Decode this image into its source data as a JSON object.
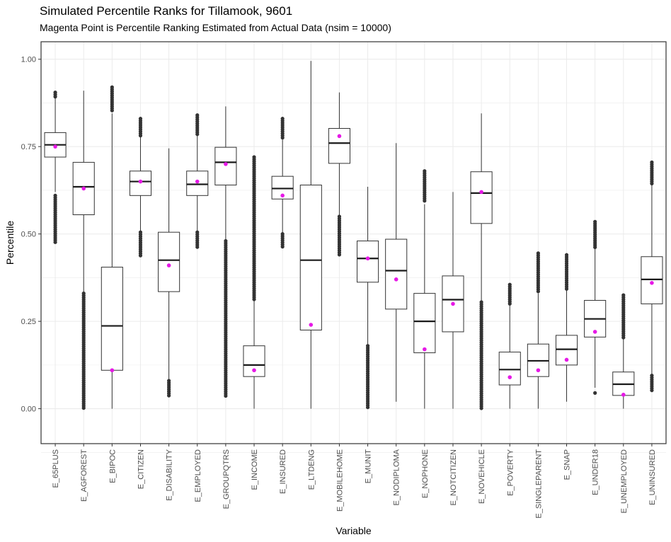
{
  "chart_data": {
    "type": "boxplot",
    "title": "Simulated Percentile Ranks for Tillamook, 9601",
    "subtitle": "Magenta Point is Percentile Ranking Estimated from Actual Data (nsim = 10000)",
    "xlabel": "Variable",
    "ylabel": "Percentile",
    "ylim": [
      -0.1,
      1.05
    ],
    "yticks": [
      "0.00",
      "0.25",
      "0.50",
      "0.75",
      "1.00"
    ],
    "grid": true,
    "colors": {
      "box": "#333333",
      "median": "#1a1a1a",
      "outlier": "#333333",
      "actual": "#e619e6",
      "grid": "#ebebeb",
      "panel_border": "#333333"
    },
    "categories": [
      "E_65PLUS",
      "E_AGFOREST",
      "E_BIPOC",
      "E_CITIZEN",
      "E_DISABILITY",
      "E_EMPLOYED",
      "E_GROUPQTRS",
      "E_INCOME",
      "E_INSURED",
      "E_LTDENG",
      "E_MOBILEHOME",
      "E_MUNIT",
      "E_NODIPLOMA",
      "E_NOPHONE",
      "E_NOTCITIZEN",
      "E_NOVEHICLE",
      "E_POVERTY",
      "E_SINGLEPARENT",
      "E_SNAP",
      "E_UNDER18",
      "E_UNEMPLOYED",
      "E_UNINSURED"
    ],
    "boxes": [
      {
        "lower_whisker": 0.62,
        "q1": 0.72,
        "median": 0.755,
        "q3": 0.79,
        "upper_whisker": 0.89,
        "outliers_low": [
          0.475,
          0.61
        ],
        "outliers_high": [
          0.89,
          0.905
        ],
        "actual": 0.75
      },
      {
        "lower_whisker": 0.33,
        "q1": 0.555,
        "median": 0.635,
        "q3": 0.705,
        "upper_whisker": 0.91,
        "outliers_low": [
          0.0,
          0.33
        ],
        "outliers_high": [],
        "actual": 0.63
      },
      {
        "lower_whisker": 0.0,
        "q1": 0.11,
        "median": 0.237,
        "q3": 0.405,
        "upper_whisker": 0.845,
        "outliers_low": [],
        "outliers_high": [
          0.85,
          0.92
        ],
        "actual": 0.11
      },
      {
        "lower_whisker": 0.505,
        "q1": 0.61,
        "median": 0.65,
        "q3": 0.68,
        "upper_whisker": 0.78,
        "outliers_low": [
          0.435,
          0.505
        ],
        "outliers_high": [
          0.78,
          0.83
        ],
        "actual": 0.65
      },
      {
        "lower_whisker": 0.08,
        "q1": 0.335,
        "median": 0.425,
        "q3": 0.505,
        "upper_whisker": 0.745,
        "outliers_low": [
          0.035,
          0.08
        ],
        "outliers_high": [],
        "actual": 0.41
      },
      {
        "lower_whisker": 0.505,
        "q1": 0.61,
        "median": 0.642,
        "q3": 0.68,
        "upper_whisker": 0.785,
        "outliers_low": [
          0.46,
          0.505
        ],
        "outliers_high": [
          0.785,
          0.84
        ],
        "actual": 0.65
      },
      {
        "lower_whisker": 0.48,
        "q1": 0.64,
        "median": 0.705,
        "q3": 0.748,
        "upper_whisker": 0.865,
        "outliers_low": [
          0.035,
          0.48
        ],
        "outliers_high": [],
        "actual": 0.7
      },
      {
        "lower_whisker": 0.0,
        "q1": 0.092,
        "median": 0.125,
        "q3": 0.18,
        "upper_whisker": 0.31,
        "outliers_low": [],
        "outliers_high": [
          0.31,
          0.72
        ],
        "actual": 0.11
      },
      {
        "lower_whisker": 0.5,
        "q1": 0.6,
        "median": 0.63,
        "q3": 0.665,
        "upper_whisker": 0.77,
        "outliers_low": [
          0.46,
          0.5
        ],
        "outliers_high": [
          0.77,
          0.83
        ],
        "actual": 0.61
      },
      {
        "lower_whisker": 0.0,
        "q1": 0.225,
        "median": 0.425,
        "q3": 0.64,
        "upper_whisker": 0.995,
        "outliers_low": [],
        "outliers_high": [],
        "actual": 0.24
      },
      {
        "lower_whisker": 0.555,
        "q1": 0.702,
        "median": 0.76,
        "q3": 0.802,
        "upper_whisker": 0.905,
        "outliers_low": [
          0.435,
          0.55
        ],
        "outliers_high": [],
        "actual": 0.78
      },
      {
        "lower_whisker": 0.185,
        "q1": 0.362,
        "median": 0.43,
        "q3": 0.48,
        "upper_whisker": 0.635,
        "outliers_low": [
          0.0,
          0.18
        ],
        "outliers_high": [],
        "actual": 0.43
      },
      {
        "lower_whisker": 0.02,
        "q1": 0.285,
        "median": 0.395,
        "q3": 0.485,
        "upper_whisker": 0.76,
        "outliers_low": [],
        "outliers_high": [],
        "actual": 0.37
      },
      {
        "lower_whisker": 0.0,
        "q1": 0.16,
        "median": 0.25,
        "q3": 0.33,
        "upper_whisker": 0.585,
        "outliers_low": [],
        "outliers_high": [
          0.59,
          0.68
        ],
        "actual": 0.17
      },
      {
        "lower_whisker": 0.0,
        "q1": 0.22,
        "median": 0.312,
        "q3": 0.38,
        "upper_whisker": 0.62,
        "outliers_low": [],
        "outliers_high": [],
        "actual": 0.3
      },
      {
        "lower_whisker": 0.31,
        "q1": 0.53,
        "median": 0.617,
        "q3": 0.678,
        "upper_whisker": 0.845,
        "outliers_low": [
          0.0,
          0.305
        ],
        "outliers_high": [],
        "actual": 0.62
      },
      {
        "lower_whisker": 0.0,
        "q1": 0.068,
        "median": 0.112,
        "q3": 0.162,
        "upper_whisker": 0.3,
        "outliers_low": [],
        "outliers_high": [
          0.3,
          0.355
        ],
        "actual": 0.09
      },
      {
        "lower_whisker": 0.0,
        "q1": 0.092,
        "median": 0.137,
        "q3": 0.185,
        "upper_whisker": 0.33,
        "outliers_low": [],
        "outliers_high": [
          0.33,
          0.445
        ],
        "actual": 0.11
      },
      {
        "lower_whisker": 0.02,
        "q1": 0.125,
        "median": 0.17,
        "q3": 0.21,
        "upper_whisker": 0.34,
        "outliers_low": [],
        "outliers_high": [
          0.34,
          0.44
        ],
        "actual": 0.14
      },
      {
        "lower_whisker": 0.06,
        "q1": 0.205,
        "median": 0.257,
        "q3": 0.31,
        "upper_whisker": 0.46,
        "outliers_low": [
          0.045
        ],
        "outliers_high": [
          0.46,
          0.535
        ],
        "actual": 0.22
      },
      {
        "lower_whisker": 0.0,
        "q1": 0.038,
        "median": 0.07,
        "q3": 0.105,
        "upper_whisker": 0.2,
        "outliers_low": [],
        "outliers_high": [
          0.2,
          0.325
        ],
        "actual": 0.04
      },
      {
        "lower_whisker": 0.095,
        "q1": 0.3,
        "median": 0.37,
        "q3": 0.435,
        "upper_whisker": 0.64,
        "outliers_low": [
          0.05,
          0.095
        ],
        "outliers_high": [
          0.64,
          0.705
        ],
        "actual": 0.36
      }
    ]
  }
}
